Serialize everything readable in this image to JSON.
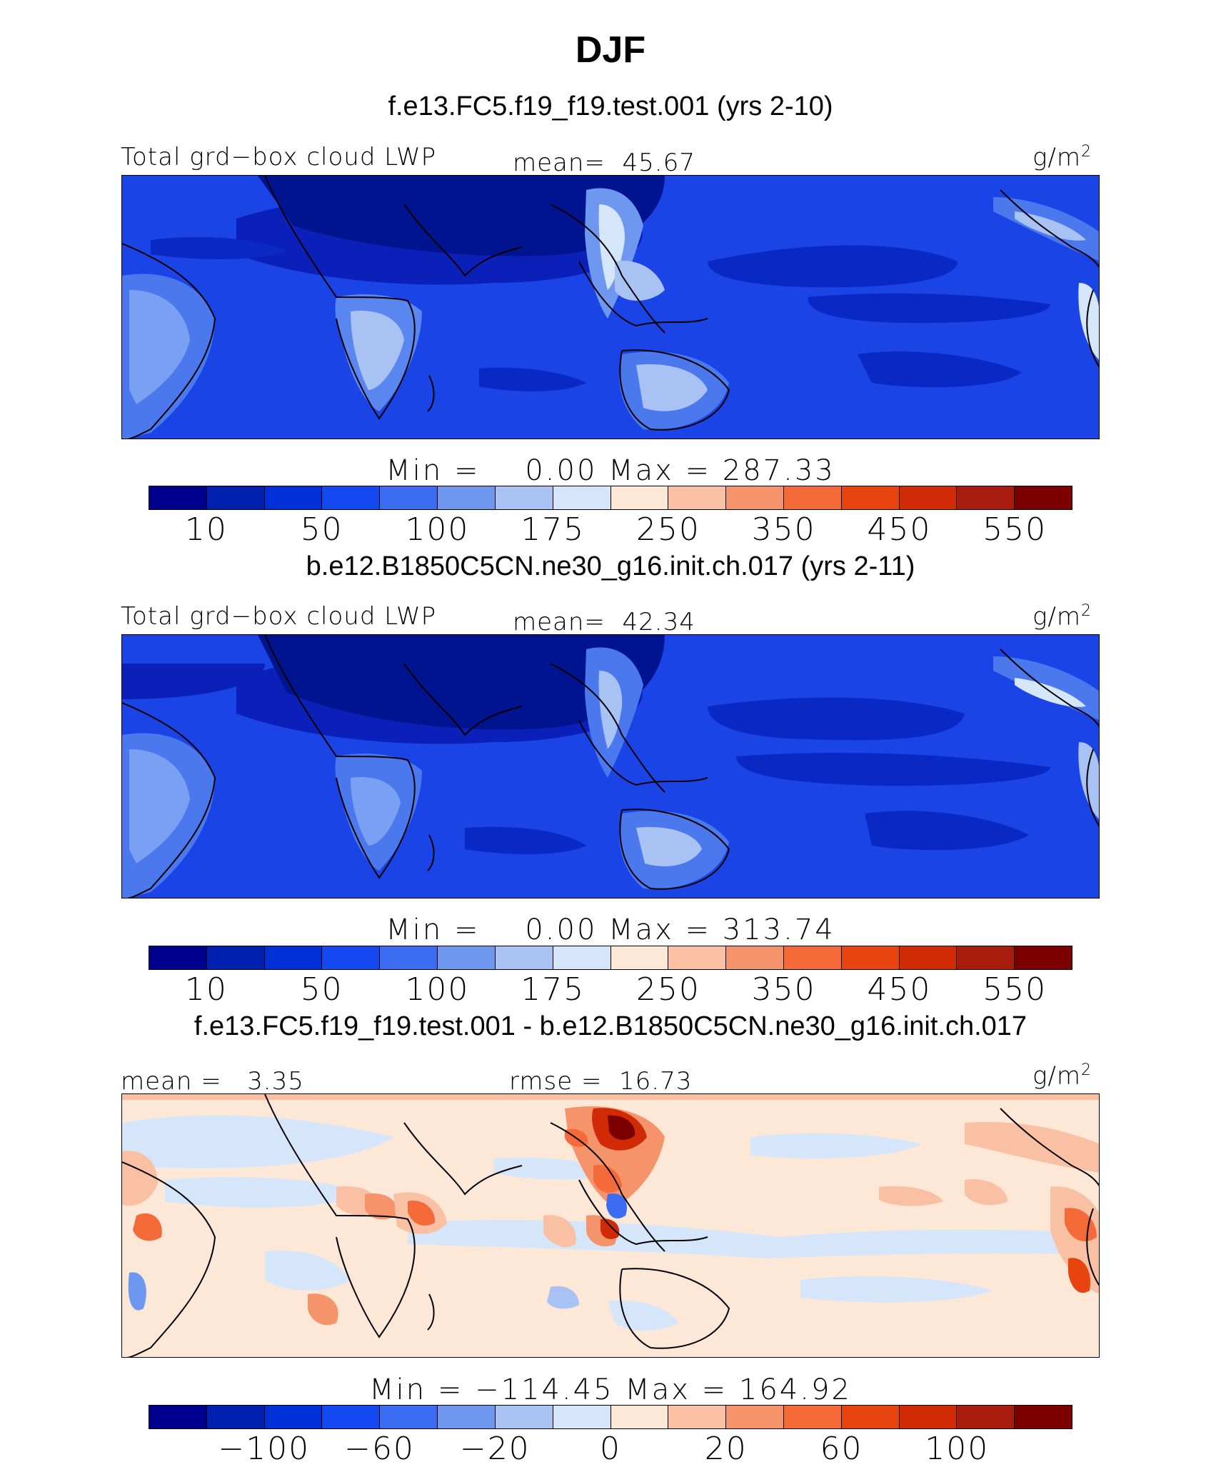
{
  "title": "DJF",
  "panels": [
    {
      "case_title": "f.e13.FC5.f19_f19.test.001 (yrs 2-10)",
      "variable": "Total grd−box cloud LWP",
      "mean_label": "mean=  45.67",
      "units": "g/m",
      "units_exp": "2",
      "minmax": "Min =    0.00 Max = 287.33",
      "colorbar": "abs",
      "map_style": "abs1"
    },
    {
      "case_title": "b.e12.B1850C5CN.ne30_g16.init.ch.017 (yrs 2-11)",
      "variable": "Total grd−box cloud LWP",
      "mean_label": "mean=  42.34",
      "units": "g/m",
      "units_exp": "2",
      "minmax": "Min =    0.00 Max = 313.74",
      "colorbar": "abs",
      "map_style": "abs2"
    },
    {
      "case_title": "f.e13.FC5.f19_f19.test.001 - b.e12.B1850C5CN.ne30_g16.init.ch.017",
      "variable": "mean =   3.35",
      "mean_label": "rmse =  16.73",
      "units": "g/m",
      "units_exp": "2",
      "minmax": "Min = −114.45 Max = 164.92",
      "colorbar": "diff",
      "map_style": "diff"
    }
  ],
  "colorbars": {
    "abs": {
      "colors": [
        "#00008e",
        "#0020b0",
        "#0030d8",
        "#1448f0",
        "#3c6cf2",
        "#6e98f0",
        "#a8c2f4",
        "#d6e6fa",
        "#fde8d8",
        "#f9c0a4",
        "#f5946a",
        "#f46a38",
        "#e84410",
        "#d02a06",
        "#a81c0e",
        "#7c0000"
      ],
      "ticks": [
        "10",
        "50",
        "100",
        "175",
        "250",
        "350",
        "450",
        "550"
      ]
    },
    "diff": {
      "colors": [
        "#00008e",
        "#0020b0",
        "#0030d8",
        "#1448f0",
        "#3c6cf2",
        "#6e98f0",
        "#a8c2f4",
        "#d6e6fa",
        "#fde8d8",
        "#f9c0a4",
        "#f5946a",
        "#f46a38",
        "#e84410",
        "#d02a06",
        "#a81c0e",
        "#7c0000"
      ],
      "ticks": [
        "−100",
        "−60",
        "−20",
        "0",
        "20",
        "60",
        "100"
      ]
    }
  }
}
